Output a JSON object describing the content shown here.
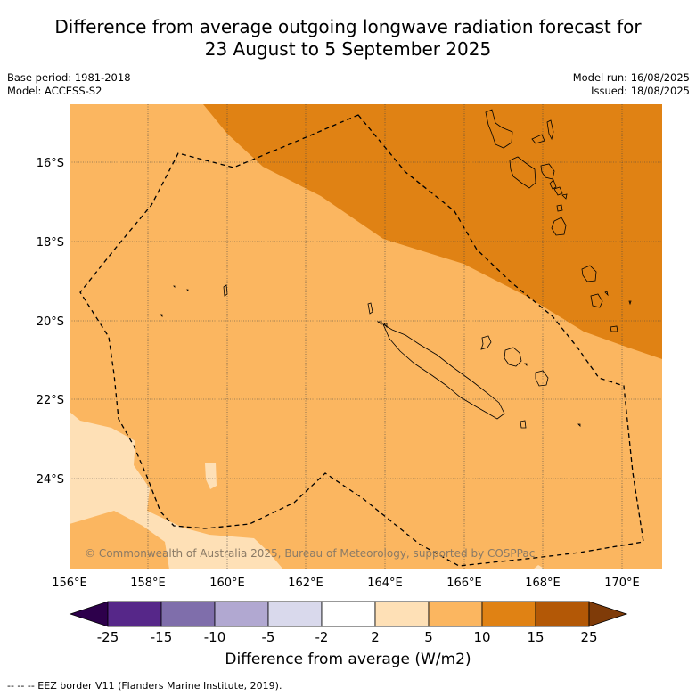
{
  "title_line1": "Difference from average outgoing longwave radiation forecast for",
  "title_line2": "23 August to 5 September 2025",
  "meta_left": [
    "Base period: 1981-2018",
    "Model: ACCESS-S2"
  ],
  "meta_right": [
    "Model run: 16/08/2025",
    "Issued: 18/08/2025"
  ],
  "lat_labels": [
    "16°S",
    "18°S",
    "20°S",
    "22°S",
    "24°S"
  ],
  "lon_labels": [
    "156°E",
    "158°E",
    "160°E",
    "162°E",
    "164°E",
    "166°E",
    "168°E",
    "170°E"
  ],
  "copyright": "© Commonwealth of Australia 2025, Bureau of Meteorology, supported by COSPPac",
  "colorbar": {
    "title": "Difference from average (W/m2)",
    "ticks": [
      "-25",
      "-15",
      "-10",
      "-5",
      "-2",
      "2",
      "5",
      "10",
      "15",
      "25"
    ],
    "colors": [
      "#562789",
      "#7f6eab",
      "#b1a8d1",
      "#d9d9ec",
      "#ffffff",
      "#fee0b6",
      "#fbb660",
      "#e08214",
      "#b35806"
    ],
    "under_color": "#2d004b",
    "over_color": "#7f3b08"
  },
  "legend_footnote": "--  --  -- EEZ border V11 (Flanders Marine Institute, 2019)."
}
